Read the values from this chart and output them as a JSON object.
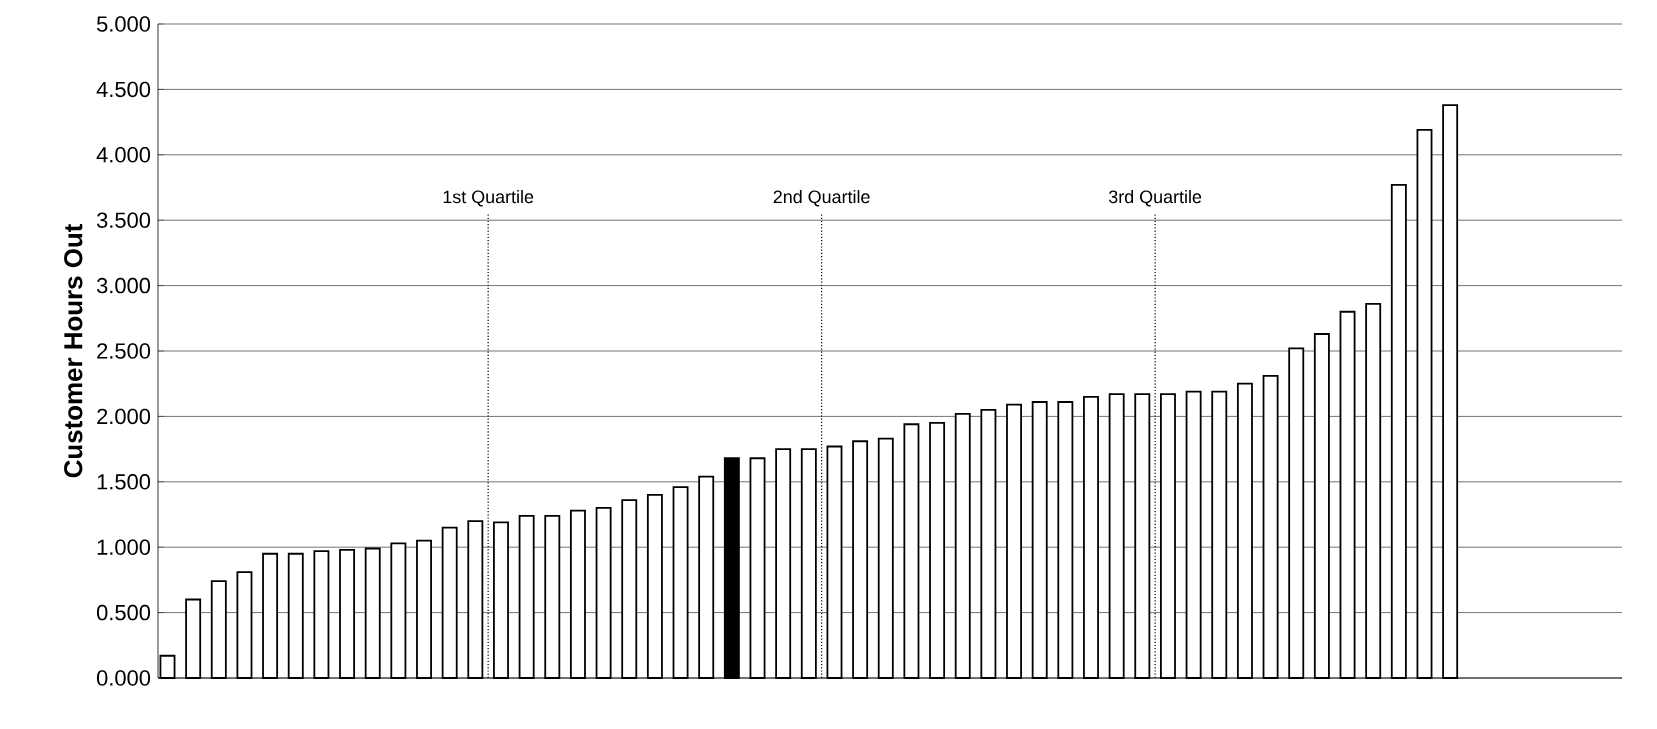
{
  "chart_data": {
    "type": "bar",
    "ylabel": "Customer Hours Out",
    "categories": [
      null,
      null,
      null,
      null,
      null,
      null,
      null,
      null,
      null,
      null,
      null,
      null,
      null,
      null,
      null,
      null,
      null,
      null,
      null,
      null,
      null,
      null,
      null,
      null,
      null,
      null,
      null,
      null,
      null,
      null,
      null,
      null,
      null,
      null,
      null,
      null,
      null,
      null,
      null,
      null,
      null,
      null,
      null,
      null,
      null,
      null,
      null,
      null,
      null,
      null,
      null
    ],
    "values": [
      0.17,
      0.6,
      0.74,
      0.81,
      0.95,
      0.95,
      0.97,
      0.98,
      0.99,
      1.03,
      1.05,
      1.15,
      1.2,
      1.19,
      1.24,
      1.24,
      1.28,
      1.3,
      1.36,
      1.4,
      1.46,
      1.54,
      1.68,
      1.68,
      1.75,
      1.75,
      1.77,
      1.81,
      1.83,
      1.94,
      1.95,
      2.02,
      2.05,
      2.09,
      2.11,
      2.11,
      2.15,
      2.17,
      2.17,
      2.17,
      2.19,
      2.19,
      2.25,
      2.31,
      2.52,
      2.63,
      2.8,
      2.86,
      3.77,
      4.19,
      4.38
    ],
    "colors": [
      "#ffffff",
      "#ffffff",
      "#ffffff",
      "#ffffff",
      "#ffffff",
      "#ffffff",
      "#ffffff",
      "#ffffff",
      "#ffffff",
      "#ffffff",
      "#ffffff",
      "#ffffff",
      "#ffffff",
      "#ffffff",
      "#ffffff",
      "#ffffff",
      "#ffffff",
      "#ffffff",
      "#ffffff",
      "#ffffff",
      "#ffffff",
      "#ffffff",
      "#000000",
      "#ffffff",
      "#ffffff",
      "#ffffff",
      "#ffffff",
      "#ffffff",
      "#ffffff",
      "#ffffff",
      "#ffffff",
      "#ffffff",
      "#ffffff",
      "#ffffff",
      "#ffffff",
      "#ffffff",
      "#ffffff",
      "#ffffff",
      "#ffffff",
      "#ffffff",
      "#ffffff",
      "#ffffff",
      "#ffffff",
      "#ffffff",
      "#ffffff",
      "#ffffff",
      "#ffffff",
      "#ffffff",
      "#ffffff",
      "#ffffff",
      "#ffffff"
    ],
    "ylim": [
      0,
      5
    ],
    "yticks": [
      {
        "value": 0,
        "label": "0.000"
      },
      {
        "value": 0.5,
        "label": "0.500"
      },
      {
        "value": 1,
        "label": "1.000"
      },
      {
        "value": 1.5,
        "label": "1.500"
      },
      {
        "value": 2,
        "label": "2.000"
      },
      {
        "value": 2.5,
        "label": "2.500"
      },
      {
        "value": 3,
        "label": "3.000"
      },
      {
        "value": 3.5,
        "label": "3.500"
      },
      {
        "value": 4,
        "label": "4.000"
      },
      {
        "value": 4.5,
        "label": "4.500"
      },
      {
        "value": 5,
        "label": "5.000"
      }
    ],
    "grid": "y",
    "annotations": [
      "1st Quartile",
      "2nd Quartile",
      "3rd Quartile"
    ]
  }
}
